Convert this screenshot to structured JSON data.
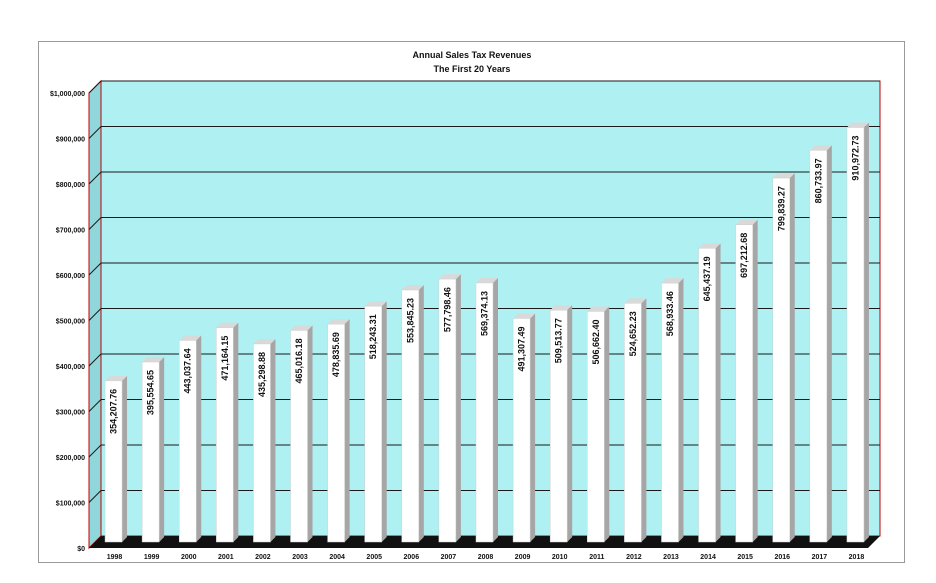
{
  "chart_data": {
    "type": "bar",
    "title": "Annual Sales Tax Revenues",
    "subtitle": "The First 20 Years",
    "xlabel": "",
    "ylabel": "",
    "categories": [
      "1998",
      "1999",
      "2000",
      "2001",
      "2002",
      "2003",
      "2004",
      "2005",
      "2006",
      "2007",
      "2008",
      "2009",
      "2010",
      "2011",
      "2012",
      "2013",
      "2014",
      "2015",
      "2016",
      "2017",
      "2018"
    ],
    "values": [
      354207.76,
      395554.65,
      443037.64,
      471164.15,
      435298.88,
      465016.18,
      478835.69,
      518243.31,
      553845.23,
      577798.46,
      569374.13,
      491307.49,
      509513.77,
      506662.4,
      524652.23,
      568933.46,
      645437.19,
      697212.68,
      799839.27,
      860733.97,
      910972.73
    ],
    "value_labels": [
      "354,207.76",
      "395,554.65",
      "443,037.64",
      "471,164.15",
      "435,298.88",
      "465,016.18",
      "478,835.69",
      "518,243.31",
      "553,845.23",
      "577,798.46",
      "569,374.13",
      "491,307.49",
      "509,513.77",
      "506,662.40",
      "524,652.23",
      "568,933.46",
      "645,437.19",
      "697,212.68",
      "799,839.27",
      "860,733.97",
      "910,972.73"
    ],
    "ylim": [
      0,
      1000000
    ],
    "yticks": [
      0,
      100000,
      200000,
      300000,
      400000,
      500000,
      600000,
      700000,
      800000,
      900000,
      1000000
    ],
    "ytick_labels": [
      "$0",
      "$100,000",
      "$200,000",
      "$300,000",
      "$400,000",
      "$500,000",
      "$600,000",
      "$700,000",
      "$800,000",
      "$900,000",
      "$1,000,000"
    ],
    "grid": true,
    "legend": "none",
    "colors": {
      "plot_background": "#aff0f2",
      "bar": "#ffffff",
      "bar_shadow": "#a6a6a6",
      "gridline": "#1a1a1a",
      "floor": "#111111",
      "plot_border": "#c00000"
    }
  }
}
